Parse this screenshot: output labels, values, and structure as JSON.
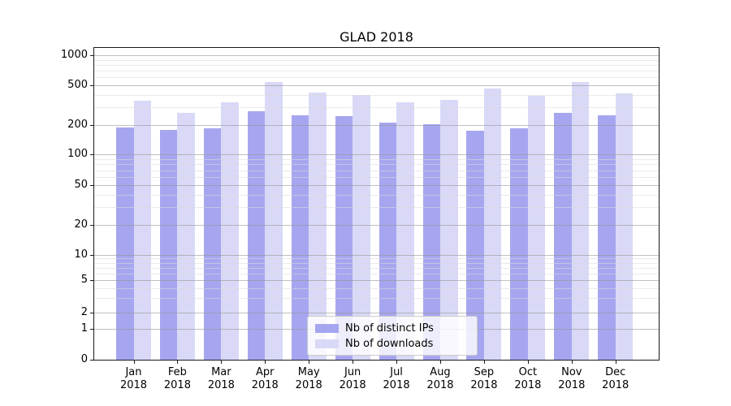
{
  "title": "GLAD 2018",
  "chart_data": {
    "type": "bar",
    "title": "GLAD 2018",
    "categories": [
      {
        "month": "Jan",
        "year": "2018"
      },
      {
        "month": "Feb",
        "year": "2018"
      },
      {
        "month": "Mar",
        "year": "2018"
      },
      {
        "month": "Apr",
        "year": "2018"
      },
      {
        "month": "May",
        "year": "2018"
      },
      {
        "month": "Jun",
        "year": "2018"
      },
      {
        "month": "Jul",
        "year": "2018"
      },
      {
        "month": "Aug",
        "year": "2018"
      },
      {
        "month": "Sep",
        "year": "2018"
      },
      {
        "month": "Oct",
        "year": "2018"
      },
      {
        "month": "Nov",
        "year": "2018"
      },
      {
        "month": "Dec",
        "year": "2018"
      }
    ],
    "series": [
      {
        "name": "Nb of distinct IPs",
        "color": "#a6a6f0",
        "values": [
          190,
          178,
          184,
          275,
          248,
          245,
          212,
          203,
          175,
          186,
          265,
          252
        ]
      },
      {
        "name": "Nb of downloads",
        "color": "#d9d9f7",
        "values": [
          348,
          265,
          333,
          530,
          420,
          397,
          334,
          352,
          460,
          390,
          530,
          415
        ]
      }
    ],
    "xlabel": "",
    "ylabel": "",
    "yscale": "symlog",
    "yticks": [
      0,
      1,
      2,
      5,
      10,
      20,
      50,
      100,
      200,
      500,
      1000
    ],
    "ylim": [
      0,
      1175
    ],
    "grid": true,
    "legend_position": "lower center"
  }
}
